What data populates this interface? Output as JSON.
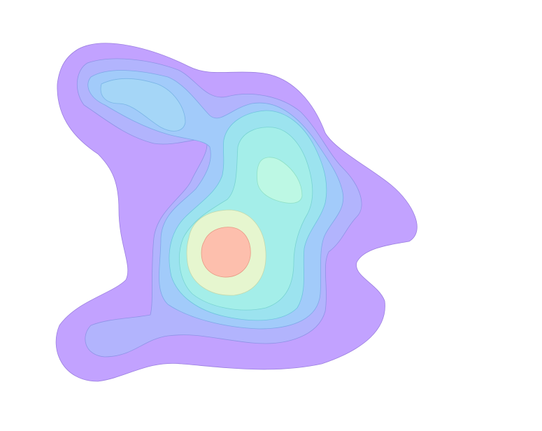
{
  "chart_data": {
    "type": "contour",
    "colormap": [
      "#c2a2ff",
      "#b2b4fd",
      "#a2cbfa",
      "#a5d6f7",
      "#9ce3ef",
      "#a4eee9",
      "#bdf8e4",
      "#e6f6cf",
      "#fdbfad"
    ],
    "levels": 9,
    "grid": false,
    "legend": "none",
    "xlabel": "",
    "ylabel": "",
    "title": ""
  }
}
